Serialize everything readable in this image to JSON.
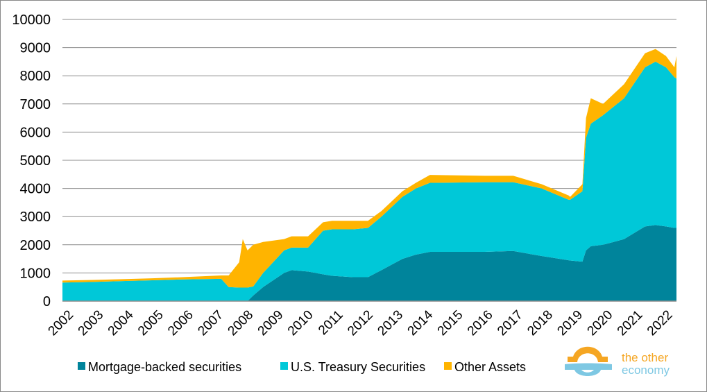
{
  "chart_data": {
    "type": "area",
    "stacked": true,
    "title": "",
    "xlabel": "",
    "ylabel": "",
    "ylim": [
      0,
      10000
    ],
    "xlim": [
      2002,
      2022.5
    ],
    "grid": true,
    "legend_position": "bottom",
    "y_ticks": [
      "0",
      "1000",
      "2000",
      "3000",
      "4000",
      "5000",
      "6000",
      "7000",
      "8000",
      "9000",
      "10000"
    ],
    "x_ticks": [
      "2002",
      "2003",
      "2004",
      "2005",
      "2006",
      "2007",
      "2008",
      "2009",
      "2010",
      "2011",
      "2012",
      "2013",
      "2014",
      "2015",
      "2016",
      "2017",
      "2018",
      "2019",
      "2020",
      "2021",
      "2022"
    ],
    "x": [
      2002.0,
      2003.0,
      2004.0,
      2005.0,
      2006.0,
      2007.3,
      2007.55,
      2007.9,
      2008.02,
      2008.18,
      2008.37,
      2008.7,
      2009.4,
      2009.65,
      2010.2,
      2010.7,
      2011.0,
      2011.7,
      2012.2,
      2012.65,
      2013.35,
      2013.8,
      2014.27,
      2016.1,
      2017.05,
      2018.0,
      2018.9,
      2018.95,
      2019.36,
      2019.48,
      2019.64,
      2020.05,
      2020.75,
      2021.45,
      2021.8,
      2022.15,
      2022.43,
      2022.5
    ],
    "series": [
      {
        "name": "Mortgage-backed securities",
        "color": "#00849b",
        "values": [
          0,
          0,
          0,
          0,
          0,
          0,
          0,
          0,
          0,
          0,
          200,
          500,
          1000,
          1100,
          1050,
          950,
          900,
          850,
          850,
          1100,
          1500,
          1650,
          1750,
          1750,
          1780,
          1600,
          1450,
          1440,
          1400,
          1800,
          1950,
          2000,
          2200,
          2650,
          2700,
          2650,
          2600,
          2600
        ]
      },
      {
        "name": "U.S. Treasury Securities",
        "color": "#00c8d8",
        "values": [
          660,
          680,
          710,
          740,
          770,
          790,
          500,
          480,
          480,
          480,
          320,
          500,
          800,
          800,
          850,
          1550,
          1650,
          1700,
          1750,
          1900,
          2200,
          2350,
          2450,
          2470,
          2440,
          2400,
          2150,
          2160,
          2500,
          4000,
          4350,
          4600,
          5000,
          5650,
          5800,
          5650,
          5350,
          5300
        ]
      },
      {
        "name": "Other Assets",
        "color": "#ffb400",
        "values": [
          70,
          70,
          70,
          70,
          80,
          120,
          410,
          900,
          1720,
          1320,
          1480,
          1100,
          400,
          400,
          400,
          300,
          300,
          300,
          250,
          200,
          200,
          200,
          280,
          230,
          230,
          150,
          150,
          100,
          250,
          700,
          900,
          400,
          500,
          500,
          450,
          400,
          350,
          800
        ]
      }
    ]
  },
  "logo": {
    "line1": "the other",
    "line2": "economy"
  }
}
